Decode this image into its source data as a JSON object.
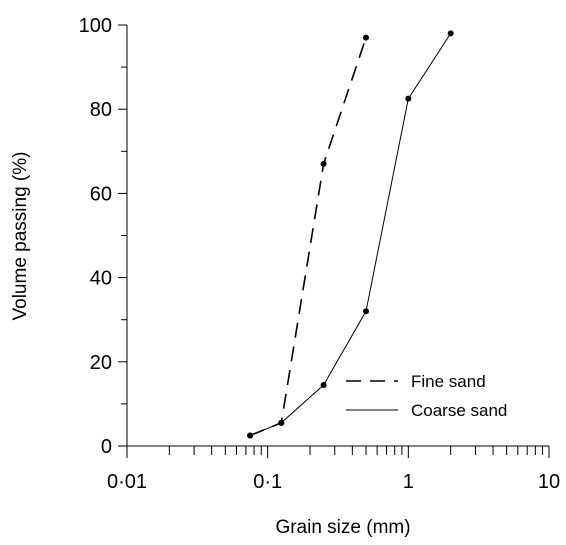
{
  "chart_data": {
    "type": "line",
    "title": "",
    "xlabel": "Grain size (mm)",
    "ylabel": "Volume passing (%)",
    "x_scale": "log",
    "xlim": [
      0.01,
      10
    ],
    "ylim": [
      0,
      100
    ],
    "x_tick_labels": [
      "0·01",
      "0·1",
      "1",
      "10"
    ],
    "y_tick_labels": [
      "0",
      "20",
      "40",
      "60",
      "80",
      "100"
    ],
    "grid": false,
    "legend_position": "bottom-right",
    "series": [
      {
        "name": "Fine sand",
        "line_style": "dashed",
        "color": "#000000",
        "x": [
          0.075,
          0.125,
          0.25,
          0.5
        ],
        "y": [
          2.5,
          5.5,
          67,
          97
        ]
      },
      {
        "name": "Coarse sand",
        "line_style": "solid",
        "color": "#000000",
        "x": [
          0.075,
          0.125,
          0.25,
          0.5,
          1,
          2
        ],
        "y": [
          2.5,
          5.5,
          14.5,
          32,
          82.5,
          98
        ]
      }
    ]
  }
}
